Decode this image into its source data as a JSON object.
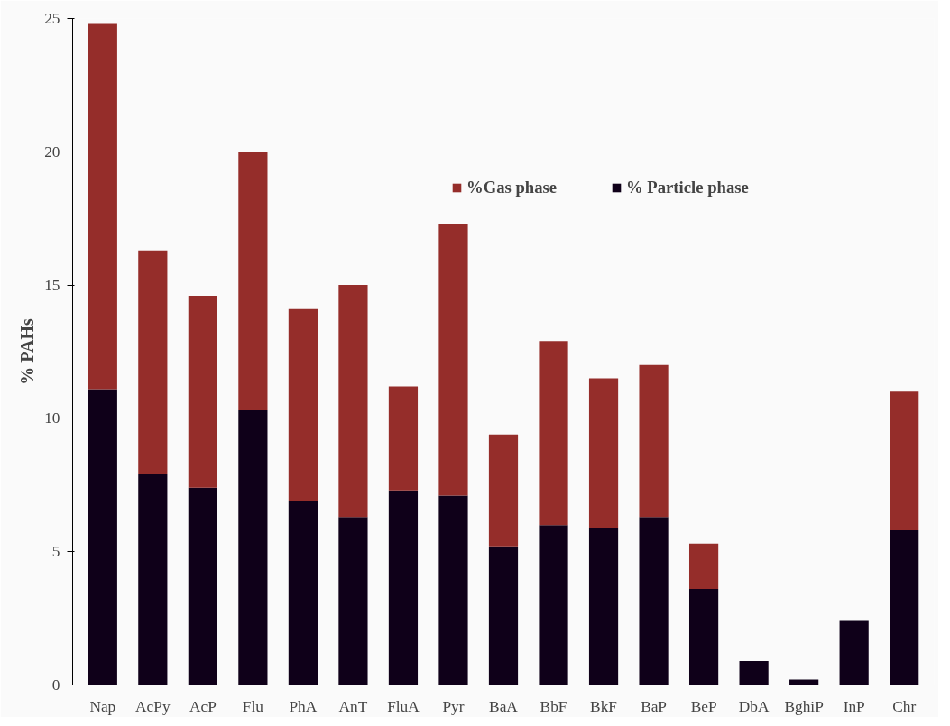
{
  "chart_data": {
    "type": "bar",
    "ylabel": "% PAHs",
    "stacked": true,
    "legend": "top",
    "grid": false,
    "categories": [
      "Nap",
      "AcPy",
      "AcP",
      "Flu",
      "PhA",
      "AnT",
      "FluA",
      "Pyr",
      "BaA",
      "BbF",
      "BkF",
      "BaP",
      "BeP",
      "DbA",
      "BghiP",
      "InP",
      "Chr"
    ],
    "series": [
      {
        "name": "% Particle phase",
        "color": "#0f0019",
        "values": [
          11.1,
          7.9,
          7.4,
          10.3,
          6.9,
          6.3,
          7.3,
          7.1,
          5.2,
          6.0,
          5.9,
          6.3,
          3.6,
          0.9,
          0.2,
          2.4,
          5.8
        ]
      },
      {
        "name": "%Gas phase",
        "color": "#952d2a",
        "values": [
          13.7,
          8.4,
          7.2,
          9.7,
          7.2,
          8.7,
          3.9,
          10.2,
          4.2,
          6.9,
          5.6,
          5.7,
          1.7,
          null,
          null,
          null,
          5.2
        ]
      }
    ],
    "ylim": [
      0,
      25
    ],
    "yticks": [
      0,
      5,
      10,
      15,
      20,
      25
    ]
  }
}
